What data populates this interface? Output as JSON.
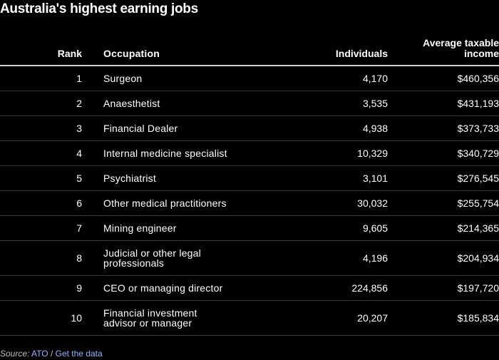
{
  "title": "Australia's highest earning jobs",
  "chart_data": {
    "type": "table",
    "columns": [
      "Rank",
      "Occupation",
      "Individuals",
      "Average taxable income"
    ],
    "rows": [
      {
        "rank": "1",
        "occupation": "Surgeon",
        "individuals": "4,170",
        "income": "$460,356"
      },
      {
        "rank": "2",
        "occupation": "Anaesthetist",
        "individuals": "3,535",
        "income": "$431,193"
      },
      {
        "rank": "3",
        "occupation": "Financial Dealer",
        "individuals": "4,938",
        "income": "$373,733"
      },
      {
        "rank": "4",
        "occupation": "Internal medicine specialist",
        "individuals": "10,329",
        "income": "$340,729"
      },
      {
        "rank": "5",
        "occupation": "Psychiatrist",
        "individuals": "3,101",
        "income": "$276,545"
      },
      {
        "rank": "6",
        "occupation": "Other medical practitioners",
        "individuals": "30,032",
        "income": "$255,754"
      },
      {
        "rank": "7",
        "occupation": "Mining engineer",
        "individuals": "9,605",
        "income": "$214,365"
      },
      {
        "rank": "8",
        "occupation": "Judicial or other legal professionals",
        "individuals": "4,196",
        "income": "$204,934"
      },
      {
        "rank": "9",
        "occupation": "CEO or managing director",
        "individuals": "224,856",
        "income": "$197,720"
      },
      {
        "rank": "10",
        "occupation": "Financial investment advisor or manager",
        "individuals": "20,207",
        "income": "$185,834"
      }
    ]
  },
  "source": {
    "label": "Source:",
    "name": "ATO",
    "separator": "/",
    "link": "Get the data"
  },
  "colors": {
    "background": "#000000",
    "text": "#ffffff",
    "link": "#8ab4f8"
  }
}
